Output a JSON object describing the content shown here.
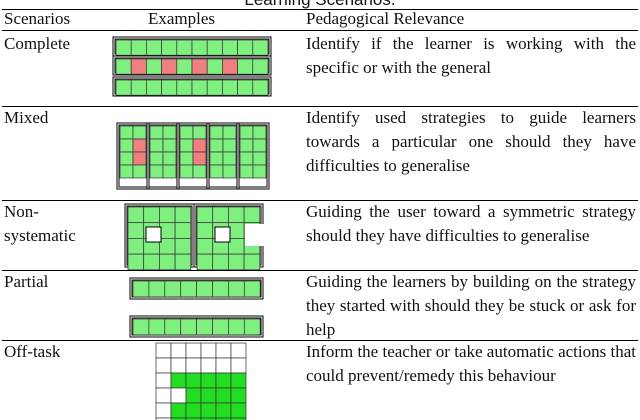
{
  "header": {
    "title": "Learning Scenarios."
  },
  "table": {
    "columns": [
      "Scenarios",
      "Examples",
      "Pedagogical Relevance"
    ],
    "rows": [
      {
        "scenario": "Complete",
        "relevance": "Identify if the learner is working with the specific or with the general"
      },
      {
        "scenario": "Mixed",
        "relevance": "Identify used strategies to guide learners towards a particular one should they have difficulties to generalise"
      },
      {
        "scenario": "Non-systematic",
        "relevance": "Guiding the user toward a symmetric strategy should they have difficulties to generalise"
      },
      {
        "scenario": "Partial",
        "relevance": "Guiding the learners by building on the strategy they started with should they be stuck or ask for help"
      },
      {
        "scenario": "Off-task",
        "relevance": "Inform the teacher or take automatic actions that could prevent/remedy this behaviour"
      }
    ]
  }
}
